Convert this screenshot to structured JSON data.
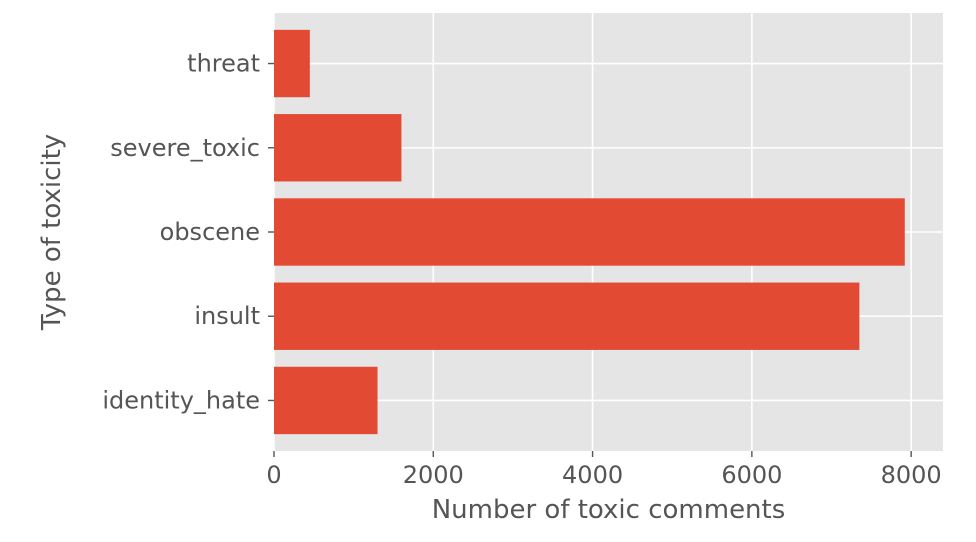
{
  "chart_data": {
    "type": "bar",
    "orientation": "horizontal",
    "categories": [
      "threat",
      "severe_toxic",
      "obscene",
      "insult",
      "identity_hate"
    ],
    "values": [
      450,
      1600,
      7920,
      7350,
      1300
    ],
    "title": "",
    "xlabel": "Number of toxic comments",
    "ylabel": "Type of toxicity",
    "xlim": [
      0,
      8400
    ],
    "xticks": [
      0,
      2000,
      4000,
      6000,
      8000
    ],
    "xtick_labels": [
      "0",
      "2000",
      "4000",
      "6000",
      "8000"
    ],
    "grid": true,
    "legend": "none",
    "colors": {
      "bar": "#e24a33",
      "plot_background": "#e5e5e5",
      "grid": "#ffffff",
      "text": "#555555"
    }
  }
}
